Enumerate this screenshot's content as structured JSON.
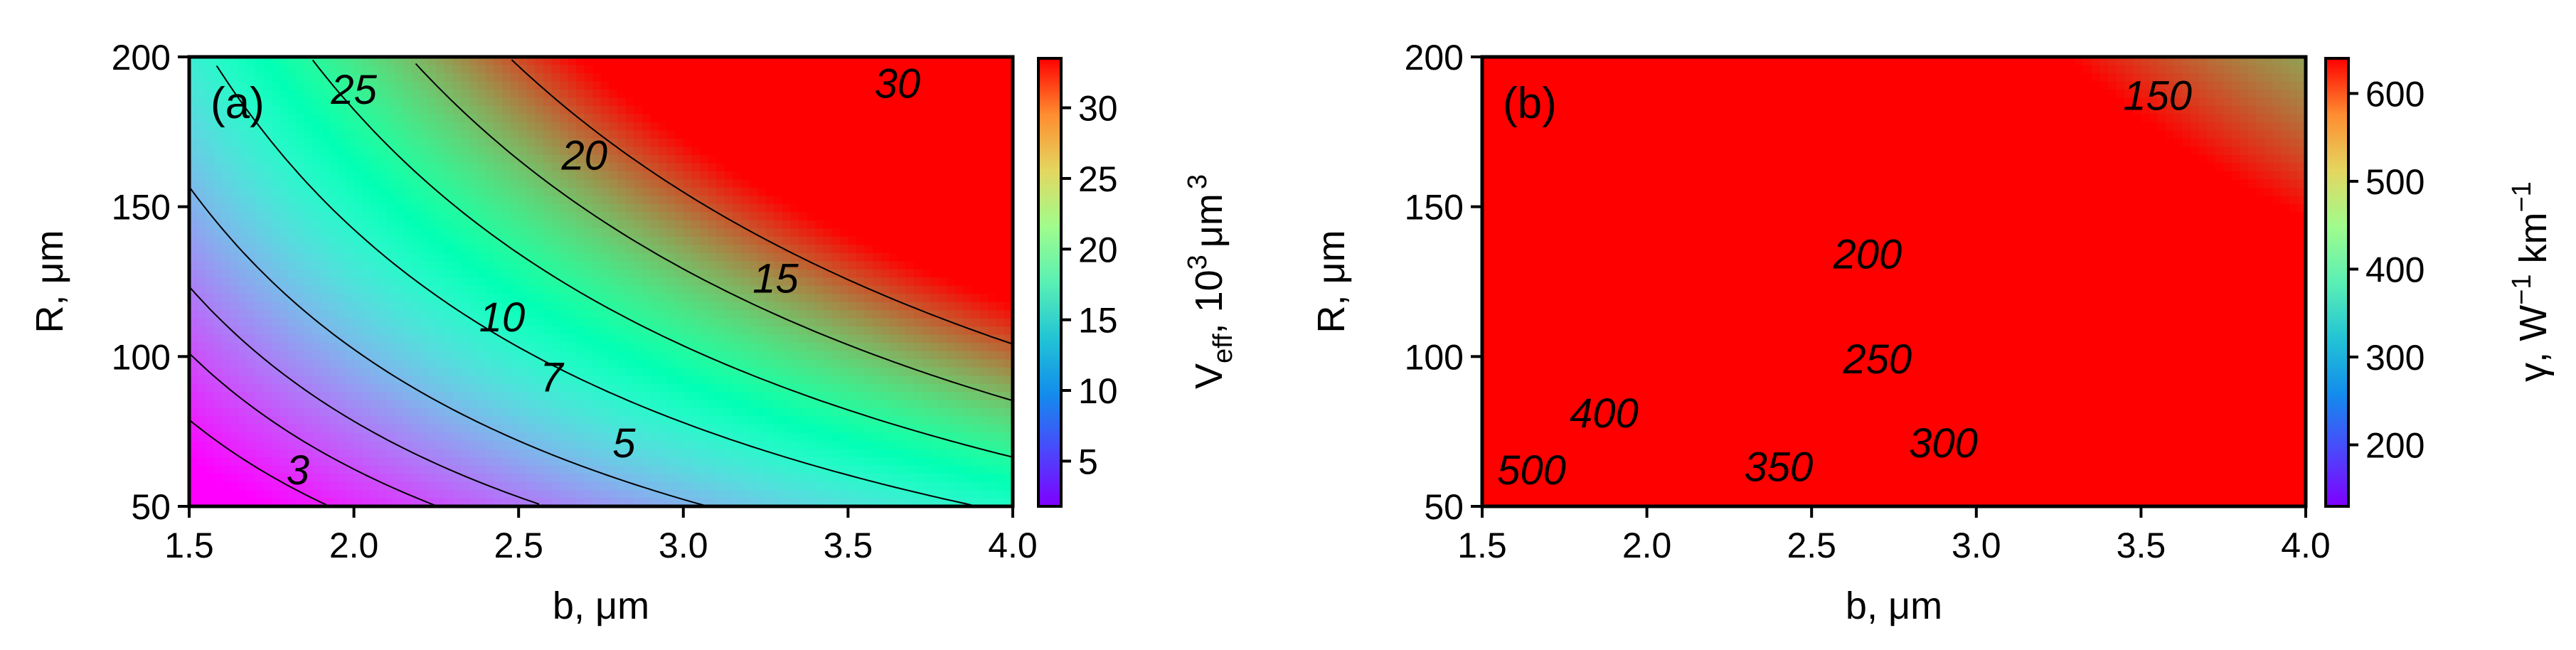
{
  "chart_data": [
    {
      "type": "heatmap",
      "panel_label": "(a)",
      "xlabel": "b, μm",
      "ylabel": "R, μm",
      "xlim": [
        1.5,
        4.0
      ],
      "ylim": [
        50,
        200
      ],
      "x_ticks": [
        "1.5",
        "2.0",
        "2.5",
        "3.0",
        "3.5",
        "4.0"
      ],
      "x_tick_values": [
        1.5,
        2.0,
        2.5,
        3.0,
        3.5,
        4.0
      ],
      "y_ticks": [
        "50",
        "100",
        "150",
        "200"
      ],
      "y_tick_values": [
        50,
        100,
        150,
        200
      ],
      "colormap": "rainbow",
      "colorbar": {
        "label_main": "V",
        "label_sub": "eff",
        "label_rest": ", 10",
        "label_sup": "3",
        "label_unit": "μm",
        "label_unit_sup": "3",
        "range": [
          1.8,
          33.5
        ],
        "ticks": [
          "5",
          "10",
          "15",
          "20",
          "25",
          "30"
        ],
        "tick_values": [
          5,
          10,
          15,
          20,
          25,
          30
        ]
      },
      "field": {
        "c0": -8.0,
        "cb": 2.6,
        "cR": 0.09,
        "cRb": 0.07
      },
      "contours": [
        {
          "level": 3,
          "label": "3",
          "label_at": [
            1.83,
            62
          ]
        },
        {
          "level": 5,
          "label": "5",
          "label_at": [
            2.82,
            71
          ]
        },
        {
          "level": 7,
          "label": "7",
          "label_at": [
            2.6,
            93
          ]
        },
        {
          "level": 10,
          "label": "10",
          "label_at": [
            2.45,
            113
          ]
        },
        {
          "level": 15,
          "label": "15",
          "label_at": [
            3.28,
            126
          ]
        },
        {
          "level": 20,
          "label": "20",
          "label_at": [
            2.7,
            167
          ]
        },
        {
          "level": 25,
          "label": "25",
          "label_at": [
            2.0,
            189
          ]
        },
        {
          "level": 30,
          "label": "30",
          "label_at": [
            3.65,
            191
          ]
        }
      ],
      "label_values": [
        "3",
        "5",
        "7",
        "10",
        "15",
        "20",
        "25",
        "30"
      ]
    },
    {
      "type": "heatmap",
      "panel_label": "(b)",
      "xlabel": "b, μm",
      "ylabel": "R, μm",
      "xlim": [
        1.5,
        4.0
      ],
      "ylim": [
        50,
        200
      ],
      "x_ticks": [
        "1.5",
        "2.0",
        "2.5",
        "3.0",
        "3.5",
        "4.0"
      ],
      "x_tick_values": [
        1.5,
        2.0,
        2.5,
        3.0,
        3.5,
        4.0
      ],
      "y_ticks": [
        "50",
        "100",
        "150",
        "200"
      ],
      "y_tick_values": [
        50,
        100,
        150,
        200
      ],
      "colormap": "rainbow",
      "colorbar": {
        "label_main": "γ, W",
        "label_sup1": "−1",
        "label_mid": " km",
        "label_sup2": "−1",
        "range": [
          130,
          640
        ],
        "ticks": [
          "200",
          "300",
          "400",
          "500",
          "600"
        ],
        "tick_values": [
          200,
          300,
          400,
          500,
          600
        ]
      },
      "field": {
        "b0": 1.1,
        "R0": 15,
        "exponent": 0.66,
        "scale": 37000
      },
      "contours": [
        {
          "level": 150,
          "label": "150",
          "label_at": [
            3.55,
            187
          ]
        },
        {
          "level": 200,
          "label": "200",
          "label_at": [
            2.67,
            134
          ]
        },
        {
          "level": 250,
          "label": "250",
          "label_at": [
            2.7,
            99
          ]
        },
        {
          "level": 300,
          "label": "300",
          "label_at": [
            2.9,
            71
          ]
        },
        {
          "level": 350,
          "label": "350",
          "label_at": [
            2.4,
            63
          ]
        },
        {
          "level": 400,
          "label": "400",
          "label_at": [
            1.87,
            81
          ]
        },
        {
          "level": 500,
          "label": "500",
          "label_at": [
            1.65,
            62
          ]
        }
      ],
      "label_values": [
        "150",
        "200",
        "250",
        "300",
        "350",
        "400",
        "500"
      ]
    }
  ]
}
